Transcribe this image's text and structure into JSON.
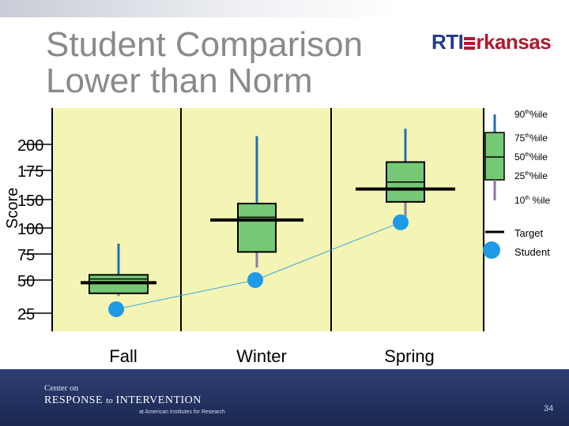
{
  "title_lines": [
    "Student Comparison",
    "Lower than Norm"
  ],
  "logo": {
    "part1": "RTI",
    "part2": "rkansas"
  },
  "footer": {
    "line1": "Center on",
    "line2a": "RESPONSE",
    "line2b": "to",
    "line2c": "INTERVENTION",
    "line3": "at American Institutes for Research",
    "page": "34"
  },
  "colors": {
    "plot_bg": "#f4f4b4",
    "box_fill": "#76c874",
    "whisker_upper": "#1f6fb8",
    "whisker_lower": "#8c7aa6",
    "target": "#000000",
    "student": "#1e9ae6",
    "student_line": "#3aa7e8"
  },
  "chart_data": {
    "type": "box",
    "ylabel": "Score",
    "yticks": [
      {
        "value": 25,
        "label": "25"
      },
      {
        "value": 50,
        "label": "50"
      },
      {
        "value": 75,
        "label": "75"
      },
      {
        "value": 100,
        "label": "100"
      },
      {
        "value": 150,
        "label": "150"
      },
      {
        "value": 175,
        "label": "175"
      },
      {
        "value": 200,
        "label": "200"
      }
    ],
    "categories": [
      "Fall",
      "Winter",
      "Spring"
    ],
    "series": [
      {
        "name": "90th%ile",
        "values": [
          85,
          208,
          215
        ]
      },
      {
        "name": "75th%ile",
        "values": [
          55,
          143,
          183
        ]
      },
      {
        "name": "50th%ile",
        "values": [
          51,
          119,
          165
        ]
      },
      {
        "name": "25th%ile",
        "values": [
          40,
          77,
          146
        ]
      },
      {
        "name": "10th %ile",
        "values": [
          38,
          62,
          120
        ]
      },
      {
        "name": "Target",
        "values": [
          48,
          114,
          159
        ]
      },
      {
        "name": "Student",
        "values": [
          28,
          50,
          110
        ]
      }
    ],
    "legend": [
      {
        "sup": "th",
        "name": "90",
        "rest": "%ile"
      },
      {
        "sup": "th",
        "name": "75",
        "rest": "%ile"
      },
      {
        "sup": "th",
        "name": "50",
        "rest": "%ile"
      },
      {
        "sup": "th",
        "name": "25",
        "rest": "%ile"
      },
      {
        "sup": "th",
        "name": "10",
        "rest": " %ile"
      },
      {
        "name": "Target"
      },
      {
        "name": "Student"
      }
    ],
    "legend_position": "right",
    "grid": false
  }
}
